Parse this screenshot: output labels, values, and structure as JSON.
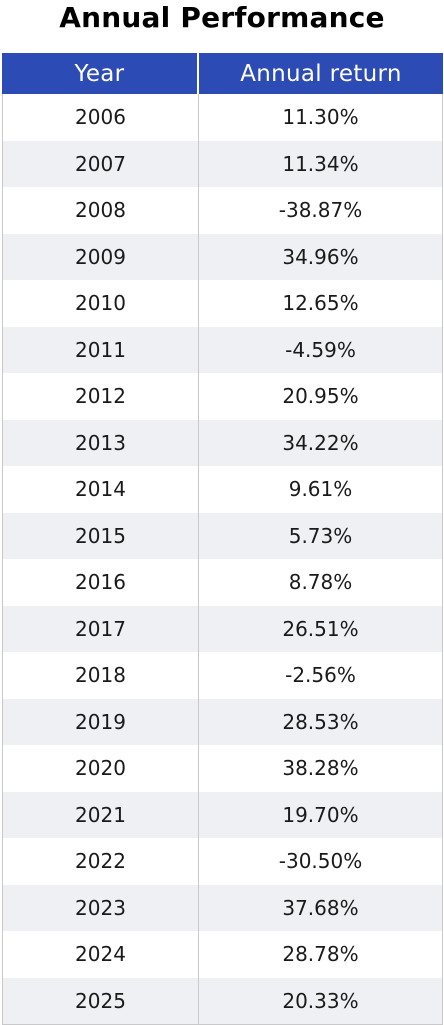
{
  "chart_data": {
    "type": "table",
    "title": "Annual Performance",
    "columns": [
      "Year",
      "Annual return"
    ],
    "rows": [
      [
        "2006",
        "11.30%"
      ],
      [
        "2007",
        "11.34%"
      ],
      [
        "2008",
        "-38.87%"
      ],
      [
        "2009",
        "34.96%"
      ],
      [
        "2010",
        "12.65%"
      ],
      [
        "2011",
        "-4.59%"
      ],
      [
        "2012",
        "20.95%"
      ],
      [
        "2013",
        "34.22%"
      ],
      [
        "2014",
        "9.61%"
      ],
      [
        "2015",
        "5.73%"
      ],
      [
        "2016",
        "8.78%"
      ],
      [
        "2017",
        "26.51%"
      ],
      [
        "2018",
        "-2.56%"
      ],
      [
        "2019",
        "28.53%"
      ],
      [
        "2020",
        "38.28%"
      ],
      [
        "2021",
        "19.70%"
      ],
      [
        "2022",
        "-30.50%"
      ],
      [
        "2023",
        "37.68%"
      ],
      [
        "2024",
        "28.78%"
      ],
      [
        "2025",
        "20.33%"
      ]
    ],
    "header_color": "#2d4bb5",
    "stripe_color": "#eef0f3"
  }
}
